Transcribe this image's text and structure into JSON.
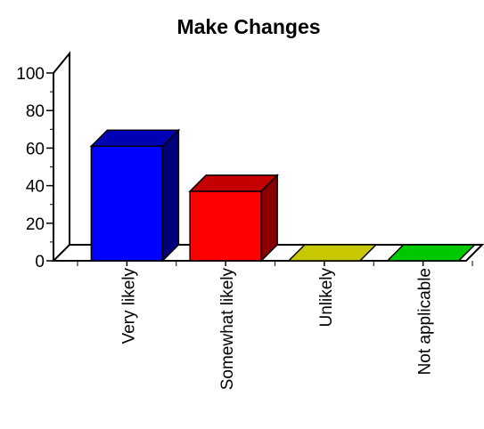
{
  "chart_data": {
    "type": "bar",
    "title": "Make Changes",
    "xlabel": "",
    "ylabel": "",
    "categories": [
      "Very likely",
      "Somewhat likely",
      "Unlikely",
      "Not applicable"
    ],
    "values": [
      61,
      37,
      0,
      0
    ],
    "ylim": [
      0,
      100
    ],
    "yticks": [
      "0",
      "20",
      "40",
      "60",
      "80",
      "100"
    ],
    "grid": false,
    "legend": "none",
    "colors": [
      {
        "front": "#0000ff",
        "top": "#0000b4",
        "side": "#00007a"
      },
      {
        "front": "#ff0000",
        "top": "#c40000",
        "side": "#8a0000"
      },
      {
        "front": "#c8c800",
        "top": "#c8c800",
        "side": "#8a8a00"
      },
      {
        "front": "#00c800",
        "top": "#00c800",
        "side": "#008a00"
      }
    ]
  }
}
